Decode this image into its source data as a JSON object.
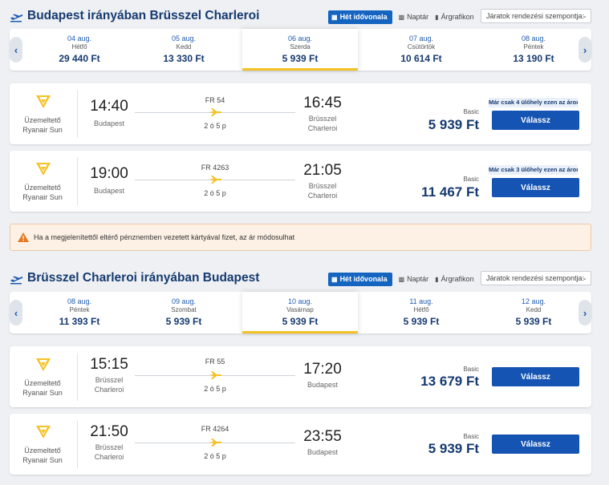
{
  "outbound": {
    "title": "Budapest irányában Brüsszel Charleroi",
    "view": {
      "week": "Hét idővonala",
      "calendar": "Naptár",
      "chart": "Árgrafikon"
    },
    "sort_placeholder": "Járatok rendezési szempontja:",
    "days": [
      {
        "date": "04 aug.",
        "weekday": "Hétfő",
        "price": "29 440 Ft"
      },
      {
        "date": "05 aug.",
        "weekday": "Kedd",
        "price": "13 330 Ft"
      },
      {
        "date": "06 aug.",
        "weekday": "Szerda",
        "price": "5 939 Ft",
        "selected": true
      },
      {
        "date": "07 aug.",
        "weekday": "Csütörtök",
        "price": "10 614 Ft"
      },
      {
        "date": "08 aug.",
        "weekday": "Péntek",
        "price": "13 190 Ft"
      }
    ],
    "flights": [
      {
        "op1": "Üzemeltető",
        "op2": "Ryanair Sun",
        "dep_time": "14:40",
        "dep_place": [
          "Budapest"
        ],
        "flight_no": "FR 54",
        "duration": "2 ó 5 p",
        "arr_time": "16:45",
        "arr_place": [
          "Brüsszel",
          "Charleroi"
        ],
        "fare": "Basic",
        "price": "5 939 Ft",
        "seats": "Már csak 4 ülőhely ezen az áron",
        "button": "Válassz"
      },
      {
        "op1": "Üzemeltető",
        "op2": "Ryanair Sun",
        "dep_time": "19:00",
        "dep_place": [
          "Budapest"
        ],
        "flight_no": "FR 4263",
        "duration": "2 ó 5 p",
        "arr_time": "21:05",
        "arr_place": [
          "Brüsszel",
          "Charleroi"
        ],
        "fare": "Basic",
        "price": "11 467 Ft",
        "seats": "Már csak 3 ülőhely ezen az áron",
        "button": "Válassz"
      }
    ]
  },
  "warning": "Ha a megjelenítettől eltérő pénznemben vezetett kártyával fizet, az ár módosulhat",
  "inbound": {
    "title": "Brüsszel Charleroi irányában Budapest",
    "view": {
      "week": "Hét idővonala",
      "calendar": "Naptár",
      "chart": "Árgrafikon"
    },
    "sort_placeholder": "Járatok rendezési szempontja:",
    "days": [
      {
        "date": "08 aug.",
        "weekday": "Péntek",
        "price": "11 393 Ft"
      },
      {
        "date": "09 aug.",
        "weekday": "Szombat",
        "price": "5 939 Ft"
      },
      {
        "date": "10 aug.",
        "weekday": "Vasárnap",
        "price": "5 939 Ft",
        "selected": true
      },
      {
        "date": "11 aug.",
        "weekday": "Hétfő",
        "price": "5 939 Ft"
      },
      {
        "date": "12 aug.",
        "weekday": "Kedd",
        "price": "5 939 Ft"
      }
    ],
    "flights": [
      {
        "op1": "Üzemeltető",
        "op2": "Ryanair Sun",
        "dep_time": "15:15",
        "dep_place": [
          "Brüsszel",
          "Charleroi"
        ],
        "flight_no": "FR 55",
        "duration": "2 ó 5 p",
        "arr_time": "17:20",
        "arr_place": [
          "Budapest"
        ],
        "fare": "Basic",
        "price": "13 679 Ft",
        "button": "Válassz"
      },
      {
        "op1": "Üzemeltető",
        "op2": "Ryanair Sun",
        "dep_time": "21:50",
        "dep_place": [
          "Brüsszel",
          "Charleroi"
        ],
        "flight_no": "FR 4264",
        "duration": "2 ó 5 p",
        "arr_time": "23:55",
        "arr_place": [
          "Budapest"
        ],
        "fare": "Basic",
        "price": "5 939 Ft",
        "button": "Válassz"
      }
    ]
  },
  "colors": {
    "accent": "#1654b3",
    "title": "#163a70",
    "highlight": "#f5c125",
    "logo": "#f5c125"
  }
}
